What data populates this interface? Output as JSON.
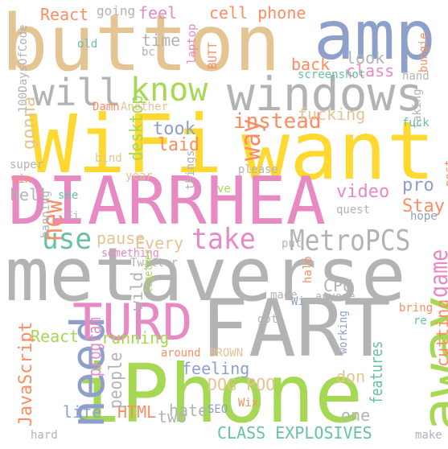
{
  "palette": {
    "orange": "#FC8D62",
    "blue": "#8DA0CB",
    "pink": "#E78AC3",
    "green": "#A6D854",
    "yellow": "#FFD92F",
    "tan": "#E5C494",
    "gray": "#B3B3B3",
    "teal": "#66C2A5"
  },
  "words": [
    {
      "text": "button",
      "color": "tan"
    },
    {
      "text": "amp",
      "color": "blue"
    },
    {
      "text": "WiFi",
      "color": "yellow"
    },
    {
      "text": "want",
      "color": "yellow"
    },
    {
      "text": "DIARRHEA",
      "color": "pink"
    },
    {
      "text": "metaverse",
      "color": "gray"
    },
    {
      "text": "FART",
      "color": "gray"
    },
    {
      "text": "iPhone",
      "color": "green"
    },
    {
      "text": "windows",
      "color": "gray"
    },
    {
      "text": "will",
      "color": "gray"
    },
    {
      "text": "know",
      "color": "green"
    },
    {
      "text": "need",
      "color": "blue"
    },
    {
      "text": "away",
      "color": "green"
    },
    {
      "text": "TURD",
      "color": "pink"
    },
    {
      "text": "MetroPCS",
      "color": "gray"
    },
    {
      "text": "take",
      "color": "pink"
    },
    {
      "text": "use",
      "color": "teal"
    },
    {
      "text": "new",
      "color": "orange"
    },
    {
      "text": "way",
      "color": "orange"
    },
    {
      "text": "instead",
      "color": "orange"
    },
    {
      "text": "fucking",
      "color": "tan"
    },
    {
      "text": "game",
      "color": "pink"
    },
    {
      "text": "cutting",
      "color": "orange"
    },
    {
      "text": "React",
      "color": "orange"
    },
    {
      "text": "going",
      "color": "gray"
    },
    {
      "text": "feel",
      "color": "pink"
    },
    {
      "text": "cell phone",
      "color": "orange"
    },
    {
      "text": "time",
      "color": "gray"
    },
    {
      "text": "look",
      "color": "gray"
    },
    {
      "text": "back",
      "color": "orange"
    },
    {
      "text": "class",
      "color": "pink"
    },
    {
      "text": "screenshot",
      "color": "teal"
    },
    {
      "text": "hand",
      "color": "gray"
    },
    {
      "text": "bungie",
      "color": "orange"
    },
    {
      "text": "old",
      "color": "teal"
    },
    {
      "text": "bc",
      "color": "gray"
    },
    {
      "text": "laptop",
      "color": "pink"
    },
    {
      "text": "BUTT",
      "color": "orange"
    },
    {
      "text": "100DaysOfCode",
      "color": "gray"
    },
    {
      "text": "Damn",
      "color": "orange"
    },
    {
      "text": "Another",
      "color": "tan"
    },
    {
      "text": "desktop",
      "color": "green"
    },
    {
      "text": "took",
      "color": "blue"
    },
    {
      "text": "laid",
      "color": "orange"
    },
    {
      "text": "taking",
      "color": "gray"
    },
    {
      "text": "fuck",
      "color": "teal"
    },
    {
      "text": "gonna",
      "color": "tan"
    },
    {
      "text": "super",
      "color": "gray"
    },
    {
      "text": "bind",
      "color": "tan"
    },
    {
      "text": "please",
      "color": "gray"
    },
    {
      "text": "post",
      "color": "orange"
    },
    {
      "text": "win",
      "color": "orange"
    },
    {
      "text": "year",
      "color": "tan"
    },
    {
      "text": "things",
      "color": "gray"
    },
    {
      "text": "ve",
      "color": "green"
    },
    {
      "text": "video",
      "color": "pink"
    },
    {
      "text": "pro",
      "color": "blue"
    },
    {
      "text": "hell",
      "color": "gray"
    },
    {
      "text": "see",
      "color": "teal"
    },
    {
      "text": "quest",
      "color": "gray"
    },
    {
      "text": "Stay",
      "color": "orange"
    },
    {
      "text": "hope",
      "color": "blue"
    },
    {
      "text": "Fi",
      "color": "gray"
    },
    {
      "text": "banning",
      "color": "gray"
    },
    {
      "text": "pause",
      "color": "tan"
    },
    {
      "text": "Every",
      "color": "tan"
    },
    {
      "text": "put",
      "color": "gray"
    },
    {
      "text": "something",
      "color": "pink"
    },
    {
      "text": "Twitter",
      "color": "gray"
    },
    {
      "text": "together",
      "color": "green"
    },
    {
      "text": "halo",
      "color": "orange"
    },
    {
      "text": "CPU",
      "color": "gray"
    },
    {
      "text": "made",
      "color": "gray"
    },
    {
      "text": "anyone",
      "color": "gray"
    },
    {
      "text": "Wi",
      "color": "blue"
    },
    {
      "text": "wild",
      "color": "gray"
    },
    {
      "text": "bring",
      "color": "orange"
    },
    {
      "text": "re",
      "color": "teal"
    },
    {
      "text": "got",
      "color": "gray"
    },
    {
      "text": "React",
      "color": "green"
    },
    {
      "text": "JavaScript",
      "color": "orange"
    },
    {
      "text": "running",
      "color": "green"
    },
    {
      "text": "around",
      "color": "orange"
    },
    {
      "text": "BROWN",
      "color": "tan"
    },
    {
      "text": "working",
      "color": "blue"
    },
    {
      "text": "program",
      "color": "pink"
    },
    {
      "text": "people",
      "color": "gray"
    },
    {
      "text": "feeling",
      "color": "blue"
    },
    {
      "text": "DOG POO",
      "color": "tan"
    },
    {
      "text": "don",
      "color": "tan"
    },
    {
      "text": "features",
      "color": "teal"
    },
    {
      "text": "Wix",
      "color": "orange"
    },
    {
      "text": "SEO",
      "color": "blue"
    },
    {
      "text": "two",
      "color": "gray"
    },
    {
      "text": "one",
      "color": "gray"
    },
    {
      "text": "life",
      "color": "blue"
    },
    {
      "text": "HTML",
      "color": "orange"
    },
    {
      "text": "hate",
      "color": "gray"
    },
    {
      "text": "CLASS EXPLOSIVES",
      "color": "teal"
    },
    {
      "text": "hard",
      "color": "gray"
    },
    {
      "text": "make",
      "color": "gray"
    }
  ]
}
